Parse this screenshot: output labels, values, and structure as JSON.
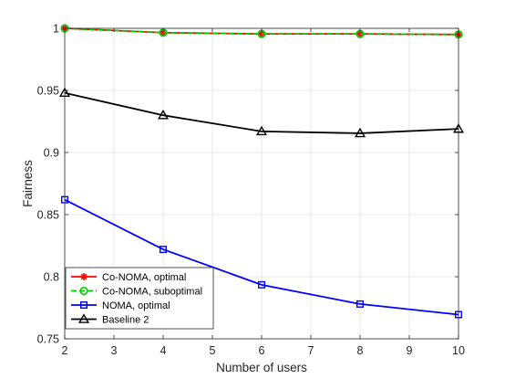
{
  "chart_data": {
    "type": "line",
    "title": "",
    "xlabel": "Number of users",
    "ylabel": "Fairness",
    "x": [
      2,
      4,
      6,
      8,
      10
    ],
    "xlim": [
      2,
      10
    ],
    "ylim": [
      0.75,
      1.0
    ],
    "xticks": [
      2,
      3,
      4,
      5,
      6,
      7,
      8,
      9,
      10
    ],
    "yticks": [
      0.75,
      0.8,
      0.85,
      0.9,
      0.95,
      1
    ],
    "ytick_labels": [
      "0.75",
      "0.8",
      "0.85",
      "0.9",
      "0.95",
      "1"
    ],
    "grid": true,
    "legend_position": "bottom-left",
    "series": [
      {
        "name": "Co-NOMA, optimal",
        "values": [
          1.0,
          0.9965,
          0.9955,
          0.9955,
          0.995
        ],
        "color": "#ff0000",
        "marker": "asterisk",
        "dash": "solid"
      },
      {
        "name": "Co-NOMA, suboptimal",
        "values": [
          1.0,
          0.9965,
          0.9955,
          0.9955,
          0.995
        ],
        "color": "#00cc00",
        "marker": "circle",
        "dash": "dashed"
      },
      {
        "name": "NOMA, optimal",
        "values": [
          0.862,
          0.822,
          0.7935,
          0.778,
          0.7695
        ],
        "color": "#0000ff",
        "marker": "square",
        "dash": "solid"
      },
      {
        "name": "Baseline 2",
        "values": [
          0.948,
          0.93,
          0.917,
          0.9155,
          0.919
        ],
        "color": "#000000",
        "marker": "triangle",
        "dash": "solid"
      }
    ]
  }
}
